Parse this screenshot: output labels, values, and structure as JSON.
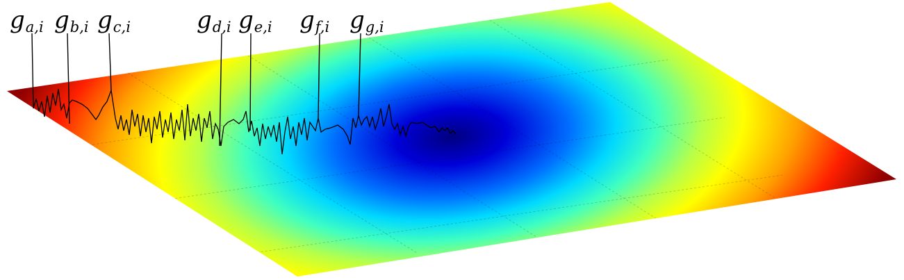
{
  "figure": {
    "colormap": [
      "#00007f",
      "#0000ff",
      "#00b0ff",
      "#00ffff",
      "#7fff7f",
      "#ffff00",
      "#ff8c00",
      "#ff0000",
      "#7f0000"
    ],
    "line_color": "#000000",
    "labels": [
      {
        "main": "g",
        "sub": "a,i"
      },
      {
        "main": "g",
        "sub": "b,i"
      },
      {
        "main": "g",
        "sub": "c,i"
      },
      {
        "main": "g",
        "sub": "d,i"
      },
      {
        "main": "g",
        "sub": "e,i"
      },
      {
        "main": "g",
        "sub": "f,i"
      },
      {
        "main": "g",
        "sub": "g,i"
      }
    ]
  }
}
